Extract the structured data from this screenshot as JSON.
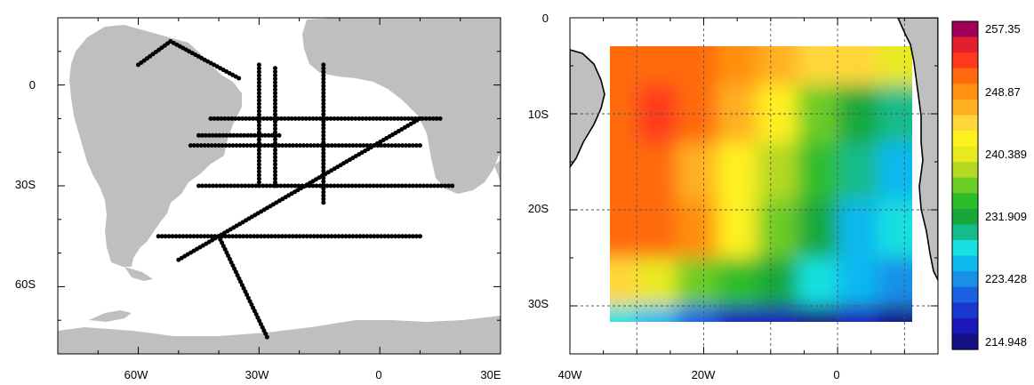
{
  "left_map": {
    "x_tick_labels": [
      "60W",
      "30W",
      "0",
      "30E"
    ],
    "y_tick_labels": [
      "0",
      "30S",
      "60S"
    ]
  },
  "right_map": {
    "x_tick_labels": [
      "40W",
      "20W",
      "0"
    ],
    "y_tick_labels": [
      "0",
      "10S",
      "20S",
      "30S"
    ],
    "colorbar_labels": [
      "257.35",
      "248.87",
      "240.389",
      "231.909",
      "223.428",
      "214.948"
    ],
    "colorbar_colors": [
      "#a0005a",
      "#e0202e",
      "#ff3a1a",
      "#ff6a10",
      "#ff9010",
      "#ffb020",
      "#ffd73a",
      "#fff020",
      "#e8ea20",
      "#b5d820",
      "#6ccc28",
      "#2ebd2a",
      "#18a83a",
      "#16bb8a",
      "#18e0e0",
      "#10b8f0",
      "#1890e8",
      "#1a60e0",
      "#1838d0",
      "#1a18b8",
      "#141084"
    ]
  },
  "chart_data": [
    {
      "type": "scatter",
      "title": "",
      "xlabel": "",
      "ylabel": "",
      "xlim": [
        -80,
        30
      ],
      "ylim": [
        -80,
        20
      ],
      "x_ticks": [
        "60W",
        "30W",
        "0",
        "30E"
      ],
      "y_ticks": [
        "0",
        "30S",
        "60S"
      ],
      "series": [
        {
          "x": [
            -60,
            -52
          ],
          "y": [
            6,
            13
          ]
        },
        {
          "x": [
            -52,
            -35
          ],
          "y": [
            13,
            2
          ]
        },
        {
          "x": [
            -45,
            -25
          ],
          "y": [
            -15,
            -15
          ]
        },
        {
          "x": [
            -42,
            15
          ],
          "y": [
            -10,
            -10
          ]
        },
        {
          "x": [
            -47,
            10
          ],
          "y": [
            -18,
            -18
          ]
        },
        {
          "x": [
            -45,
            18
          ],
          "y": [
            -30,
            -30
          ]
        },
        {
          "x": [
            -55,
            10
          ],
          "y": [
            -45,
            -45
          ]
        },
        {
          "x": [
            -30,
            -30
          ],
          "y": [
            6,
            -30
          ]
        },
        {
          "x": [
            -26,
            -26
          ],
          "y": [
            5,
            -30
          ]
        },
        {
          "x": [
            -14,
            -14
          ],
          "y": [
            6,
            -35
          ]
        },
        {
          "x": [
            -40,
            -28
          ],
          "y": [
            -45,
            -75
          ]
        },
        {
          "x": [
            -50,
            10
          ],
          "y": [
            -52,
            -10
          ]
        }
      ]
    },
    {
      "type": "heatmap",
      "title": "",
      "xlabel": "",
      "ylabel": "",
      "xlim": [
        -40,
        15
      ],
      "ylim": [
        -35,
        0
      ],
      "x_ticks": [
        "40W",
        "20W",
        "0"
      ],
      "y_ticks": [
        "0",
        "10S",
        "20S",
        "30S"
      ],
      "value_range": [
        214.948,
        257.35
      ],
      "colorbar_labels": [
        257.35,
        248.87,
        240.389,
        231.909,
        223.428,
        214.948
      ],
      "x_centers": [
        -33,
        -27,
        -21,
        -15,
        -9,
        -3,
        3,
        9
      ],
      "y_centers": [
        -4,
        -10,
        -16,
        -22,
        -28,
        -32
      ],
      "values": [
        [
          250,
          252,
          250,
          248,
          246,
          244,
          244,
          241
        ],
        [
          252,
          254,
          250,
          246,
          242,
          236,
          232,
          230
        ],
        [
          252,
          250,
          246,
          243,
          238,
          234,
          230,
          226
        ],
        [
          252,
          252,
          248,
          242,
          236,
          232,
          226,
          228
        ],
        [
          244,
          240,
          236,
          233,
          232,
          228,
          226,
          224
        ],
        [
          228,
          226,
          222,
          218,
          217,
          216,
          218,
          216
        ]
      ]
    }
  ]
}
